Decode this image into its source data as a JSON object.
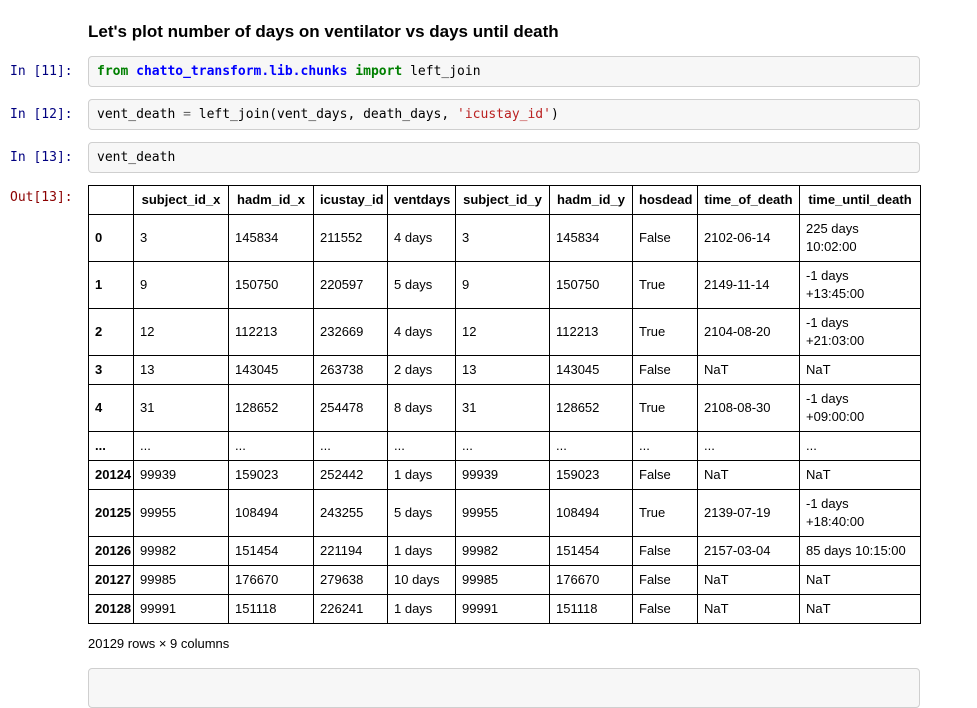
{
  "heading": "Let's plot number of days on ventilator vs days until death",
  "out_prompt": "Out[13]:",
  "code_cells": [
    {
      "prompt": "In [11]:",
      "tokens": [
        [
          "from",
          "kw"
        ],
        [
          " ",
          ""
        ],
        [
          "chatto_transform.lib.chunks",
          "nn"
        ],
        [
          " ",
          ""
        ],
        [
          "import",
          "kw"
        ],
        [
          " left_join",
          ""
        ]
      ]
    },
    {
      "prompt": "In [12]:",
      "tokens": [
        [
          "vent_death ",
          ""
        ],
        [
          "=",
          "op"
        ],
        [
          " left_join(vent_days, death_days, ",
          ""
        ],
        [
          "'icustay_id'",
          "str"
        ],
        [
          ")",
          ""
        ]
      ]
    },
    {
      "prompt": "In [13]:",
      "tokens": [
        [
          "vent_death",
          ""
        ]
      ]
    }
  ],
  "table": {
    "columns": [
      "",
      "subject_id_x",
      "hadm_id_x",
      "icustay_id",
      "ventdays",
      "subject_id_y",
      "hadm_id_y",
      "hosdead",
      "time_of_death",
      "time_until_death"
    ],
    "rows": [
      {
        "index": "0",
        "cells": [
          "3",
          "145834",
          "211552",
          "4 days",
          "3",
          "145834",
          "False",
          "2102-06-14",
          [
            "225 days",
            "10:02:00"
          ]
        ]
      },
      {
        "index": "1",
        "cells": [
          "9",
          "150750",
          "220597",
          "5 days",
          "9",
          "150750",
          "True",
          "2149-11-14",
          [
            "-1 days",
            "+13:45:00"
          ]
        ]
      },
      {
        "index": "2",
        "cells": [
          "12",
          "112213",
          "232669",
          "4 days",
          "12",
          "112213",
          "True",
          "2104-08-20",
          [
            "-1 days",
            "+21:03:00"
          ]
        ]
      },
      {
        "index": "3",
        "cells": [
          "13",
          "143045",
          "263738",
          "2 days",
          "13",
          "143045",
          "False",
          "NaT",
          "NaT"
        ]
      },
      {
        "index": "4",
        "cells": [
          "31",
          "128652",
          "254478",
          "8 days",
          "31",
          "128652",
          "True",
          "2108-08-30",
          [
            "-1 days",
            "+09:00:00"
          ]
        ]
      },
      {
        "index": "...",
        "cells": [
          "...",
          "...",
          "...",
          "...",
          "...",
          "...",
          "...",
          "...",
          "..."
        ]
      },
      {
        "index": "20124",
        "cells": [
          "99939",
          "159023",
          "252442",
          "1 days",
          "99939",
          "159023",
          "False",
          "NaT",
          "NaT"
        ]
      },
      {
        "index": "20125",
        "cells": [
          "99955",
          "108494",
          "243255",
          "5 days",
          "99955",
          "108494",
          "True",
          "2139-07-19",
          [
            "-1 days",
            "+18:40:00"
          ]
        ]
      },
      {
        "index": "20126",
        "cells": [
          "99982",
          "151454",
          "221194",
          "1 days",
          "99982",
          "151454",
          "False",
          "2157-03-04",
          "85 days 10:15:00"
        ]
      },
      {
        "index": "20127",
        "cells": [
          "99985",
          "176670",
          "279638",
          "10 days",
          "99985",
          "176670",
          "False",
          "NaT",
          "NaT"
        ]
      },
      {
        "index": "20128",
        "cells": [
          "99991",
          "151118",
          "226241",
          "1 days",
          "99991",
          "151118",
          "False",
          "NaT",
          "NaT"
        ]
      }
    ],
    "dimensions": "20129 rows × 9 columns"
  },
  "colors": {
    "in_prompt": "#000080",
    "out_prompt": "#8B0000",
    "code_keyword": "#008000",
    "code_namespace": "#0000FF",
    "code_string": "#BA2121",
    "code_operator": "#666666",
    "input_background": "#f7f7f7",
    "input_border": "#cfcfcf",
    "table_border": "#000000"
  }
}
